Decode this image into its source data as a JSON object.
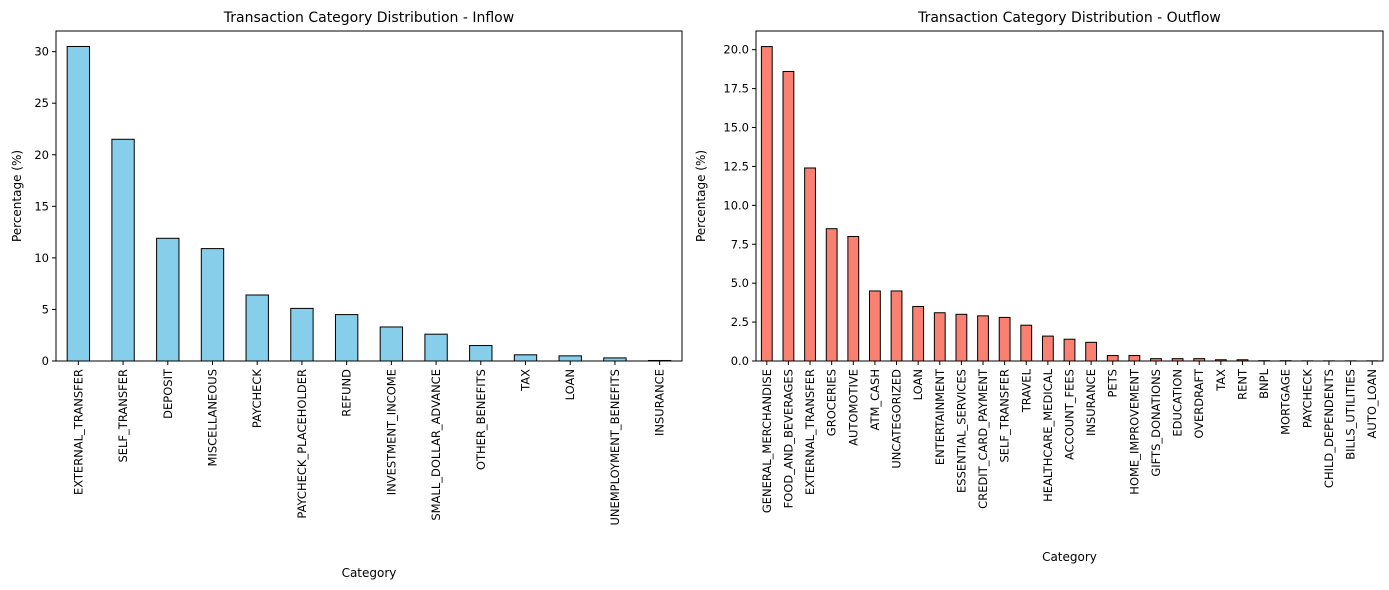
{
  "chart_data": [
    {
      "type": "bar",
      "title": "Transaction Category Distribution - Inflow",
      "xlabel": "Category",
      "ylabel": "Percentage (%)",
      "ylim": [
        0,
        32
      ],
      "yticks": [
        0,
        5,
        10,
        15,
        20,
        25,
        30
      ],
      "ytick_labels": [
        "0",
        "5",
        "10",
        "15",
        "20",
        "25",
        "30"
      ],
      "color": "#87ceeb",
      "grid": false,
      "categories": [
        "EXTERNAL_TRANSFER",
        "SELF_TRANSFER",
        "DEPOSIT",
        "MISCELLANEOUS",
        "PAYCHECK",
        "PAYCHECK_PLACEHOLDER",
        "REFUND",
        "INVESTMENT_INCOME",
        "SMALL_DOLLAR_ADVANCE",
        "OTHER_BENEFITS",
        "TAX",
        "LOAN",
        "UNEMPLOYMENT_BENEFITS",
        "INSURANCE"
      ],
      "values": [
        30.5,
        21.5,
        11.9,
        10.9,
        6.4,
        5.1,
        4.5,
        3.3,
        2.6,
        1.5,
        0.6,
        0.5,
        0.3,
        0.05
      ]
    },
    {
      "type": "bar",
      "title": "Transaction Category Distribution - Outflow",
      "xlabel": "Category",
      "ylabel": "Percentage (%)",
      "ylim": [
        0,
        21.2
      ],
      "yticks": [
        0,
        2.5,
        5,
        7.5,
        10,
        12.5,
        15,
        17.5,
        20
      ],
      "ytick_labels": [
        "0.0",
        "2.5",
        "5.0",
        "7.5",
        "10.0",
        "12.5",
        "15.0",
        "17.5",
        "20.0"
      ],
      "color": "#fa8072",
      "grid": false,
      "categories": [
        "GENERAL_MERCHANDISE",
        "FOOD_AND_BEVERAGES",
        "EXTERNAL_TRANSFER",
        "GROCERIES",
        "AUTOMOTIVE",
        "ATM_CASH",
        "UNCATEGORIZED",
        "LOAN",
        "ENTERTAINMENT",
        "ESSENTIAL_SERVICES",
        "CREDIT_CARD_PAYMENT",
        "SELF_TRANSFER",
        "TRAVEL",
        "HEALTHCARE_MEDICAL",
        "ACCOUNT_FEES",
        "INSURANCE",
        "PETS",
        "HOME_IMPROVEMENT",
        "GIFTS_DONATIONS",
        "EDUCATION",
        "OVERDRAFT",
        "TAX",
        "RENT",
        "BNPL",
        "MORTGAGE",
        "PAYCHECK",
        "CHILD_DEPENDENTS",
        "BILLS_UTILITIES",
        "AUTO_LOAN"
      ],
      "values": [
        20.2,
        18.6,
        12.4,
        8.5,
        8.0,
        4.5,
        4.5,
        3.5,
        3.1,
        3.0,
        2.9,
        2.8,
        2.3,
        1.6,
        1.4,
        1.2,
        0.35,
        0.35,
        0.15,
        0.15,
        0.15,
        0.08,
        0.08,
        0.02,
        0.02,
        0.01,
        0.01,
        0.01,
        0.01
      ]
    }
  ]
}
